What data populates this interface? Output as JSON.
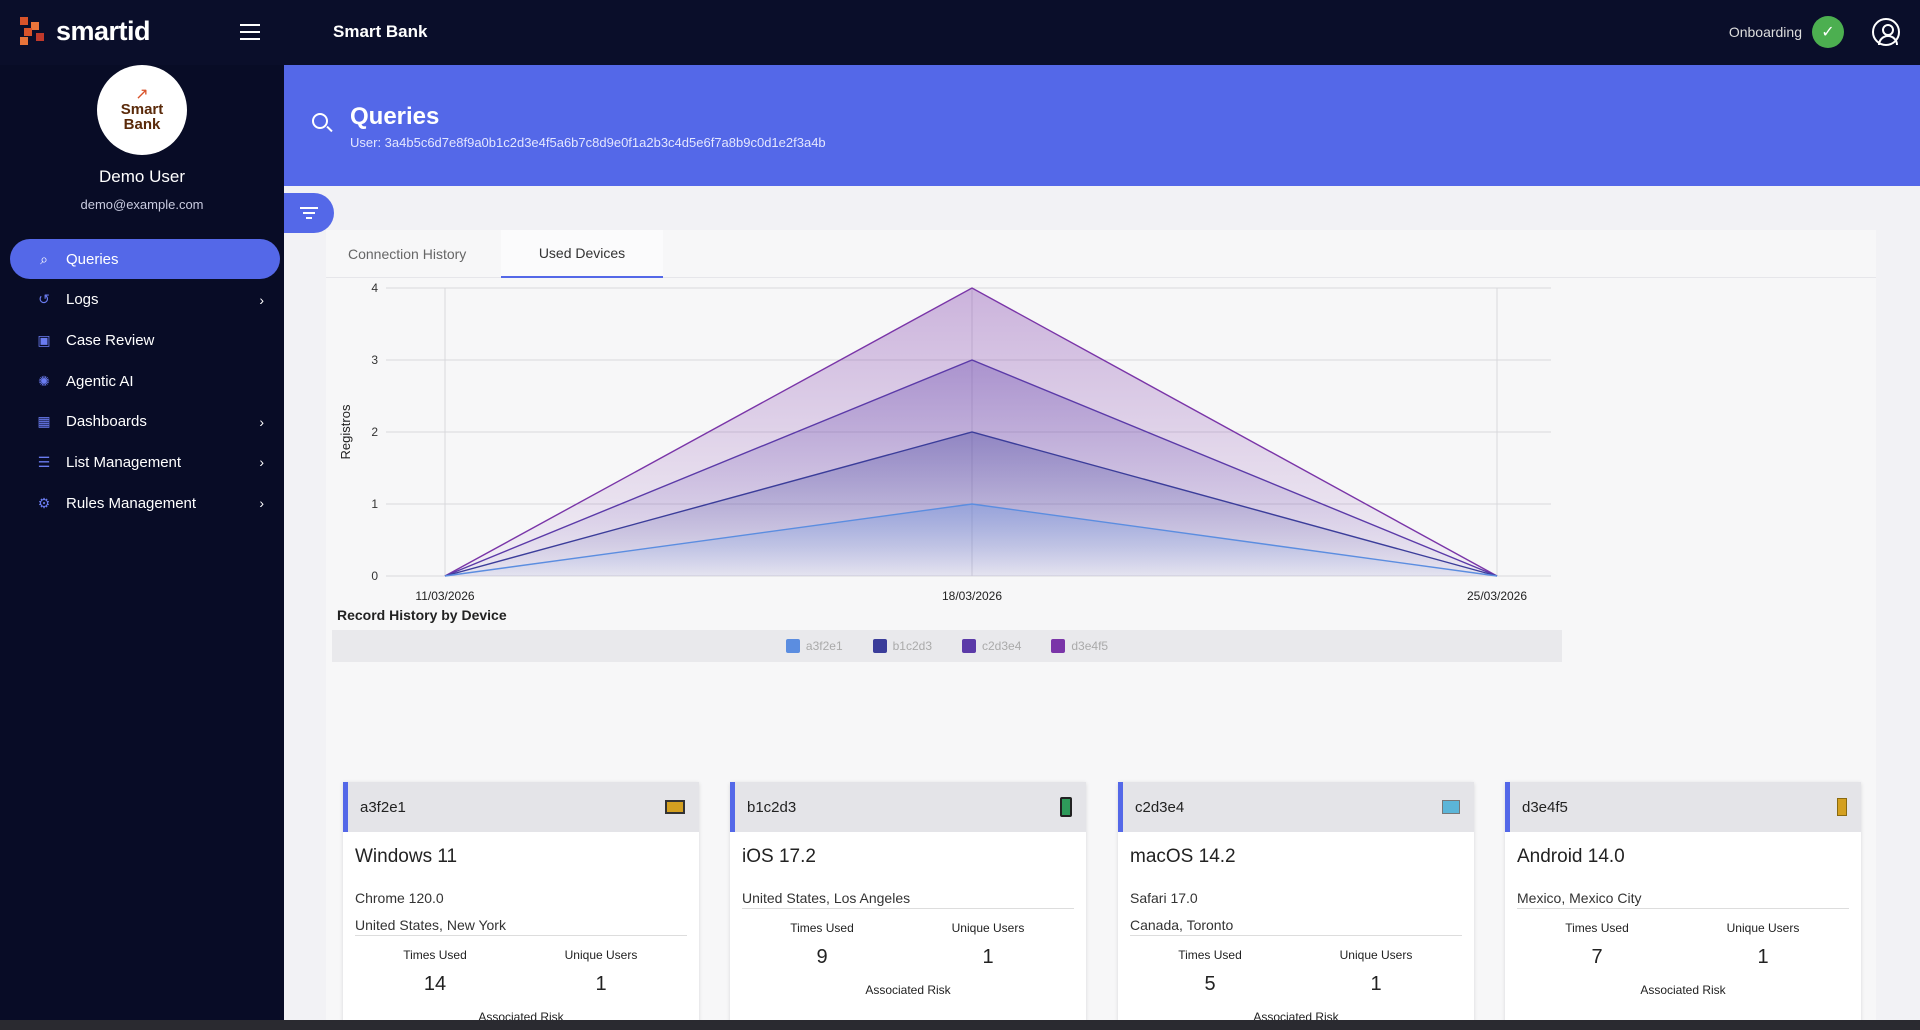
{
  "app": {
    "logo_text": "smartid",
    "title": "Smart Bank",
    "onboarding_label": "Onboarding"
  },
  "user": {
    "avatar_line1": "Smart",
    "avatar_line2": "Bank",
    "name": "Demo User",
    "email": "demo@example.com"
  },
  "sidebar": {
    "items": [
      {
        "label": "Queries",
        "icon": "search-icon",
        "active": true,
        "has_chevron": false
      },
      {
        "label": "Logs",
        "icon": "history-icon",
        "active": false,
        "has_chevron": true
      },
      {
        "label": "Case Review",
        "icon": "case-icon",
        "active": false,
        "has_chevron": false
      },
      {
        "label": "Agentic AI",
        "icon": "ai-icon",
        "active": false,
        "has_chevron": false
      },
      {
        "label": "Dashboards",
        "icon": "dashboard-icon",
        "active": false,
        "has_chevron": true
      },
      {
        "label": "List Management",
        "icon": "list-icon",
        "active": false,
        "has_chevron": true
      },
      {
        "label": "Rules Management",
        "icon": "gear-icon",
        "active": false,
        "has_chevron": true
      }
    ]
  },
  "header": {
    "title": "Queries",
    "subtitle": "User: 3a4b5c6d7e8f9a0b1c2d3e4f5a6b7c8d9e0f1a2b3c4d5e6f7a8b9c0d1e2f3a4b"
  },
  "tabs": [
    {
      "label": "Connection History",
      "active": false
    },
    {
      "label": "Used Devices",
      "active": true
    }
  ],
  "chart_data": {
    "type": "area",
    "title": "Record History by Device",
    "xlabel": "",
    "ylabel": "Registros",
    "categories": [
      "11/03/2026",
      "18/03/2026",
      "25/03/2026"
    ],
    "ylim": [
      0,
      4
    ],
    "yticks": [
      0,
      1,
      2,
      3,
      4
    ],
    "stacked": true,
    "grid": true,
    "legend_position": "bottom",
    "series": [
      {
        "name": "a3f2e1",
        "values": [
          0,
          1,
          0
        ],
        "color": "#5b8de0"
      },
      {
        "name": "b1c2d3",
        "values": [
          0,
          1,
          0
        ],
        "color": "#3b3d9a"
      },
      {
        "name": "c2d3e4",
        "values": [
          0,
          1,
          0
        ],
        "color": "#5b3aa8"
      },
      {
        "name": "d3e4f5",
        "values": [
          0,
          1,
          0
        ],
        "color": "#7a35a8"
      }
    ]
  },
  "devices": [
    {
      "id": "a3f2e1",
      "os": "Windows 11",
      "browser": "Chrome 120.0",
      "location": "United States, New York",
      "times_used": "14",
      "unique_users": "1",
      "icon": "desktop-icon",
      "icon_color": "#d4a020"
    },
    {
      "id": "b1c2d3",
      "os": "iOS 17.2",
      "browser": "",
      "location": "United States, Los Angeles",
      "times_used": "9",
      "unique_users": "1",
      "icon": "phone-icon",
      "icon_color": "#2e9a5a"
    },
    {
      "id": "c2d3e4",
      "os": "macOS 14.2",
      "browser": "Safari 17.0",
      "location": "Canada, Toronto",
      "times_used": "5",
      "unique_users": "1",
      "icon": "laptop-icon",
      "icon_color": "#5bb5d8"
    },
    {
      "id": "d3e4f5",
      "os": "Android 14.0",
      "browser": "",
      "location": "Mexico, Mexico City",
      "times_used": "7",
      "unique_users": "1",
      "icon": "tablet-icon",
      "icon_color": "#d4a020"
    }
  ],
  "card_labels": {
    "times_used": "Times Used",
    "unique_users": "Unique Users",
    "associated_risk": "Associated Risk"
  }
}
